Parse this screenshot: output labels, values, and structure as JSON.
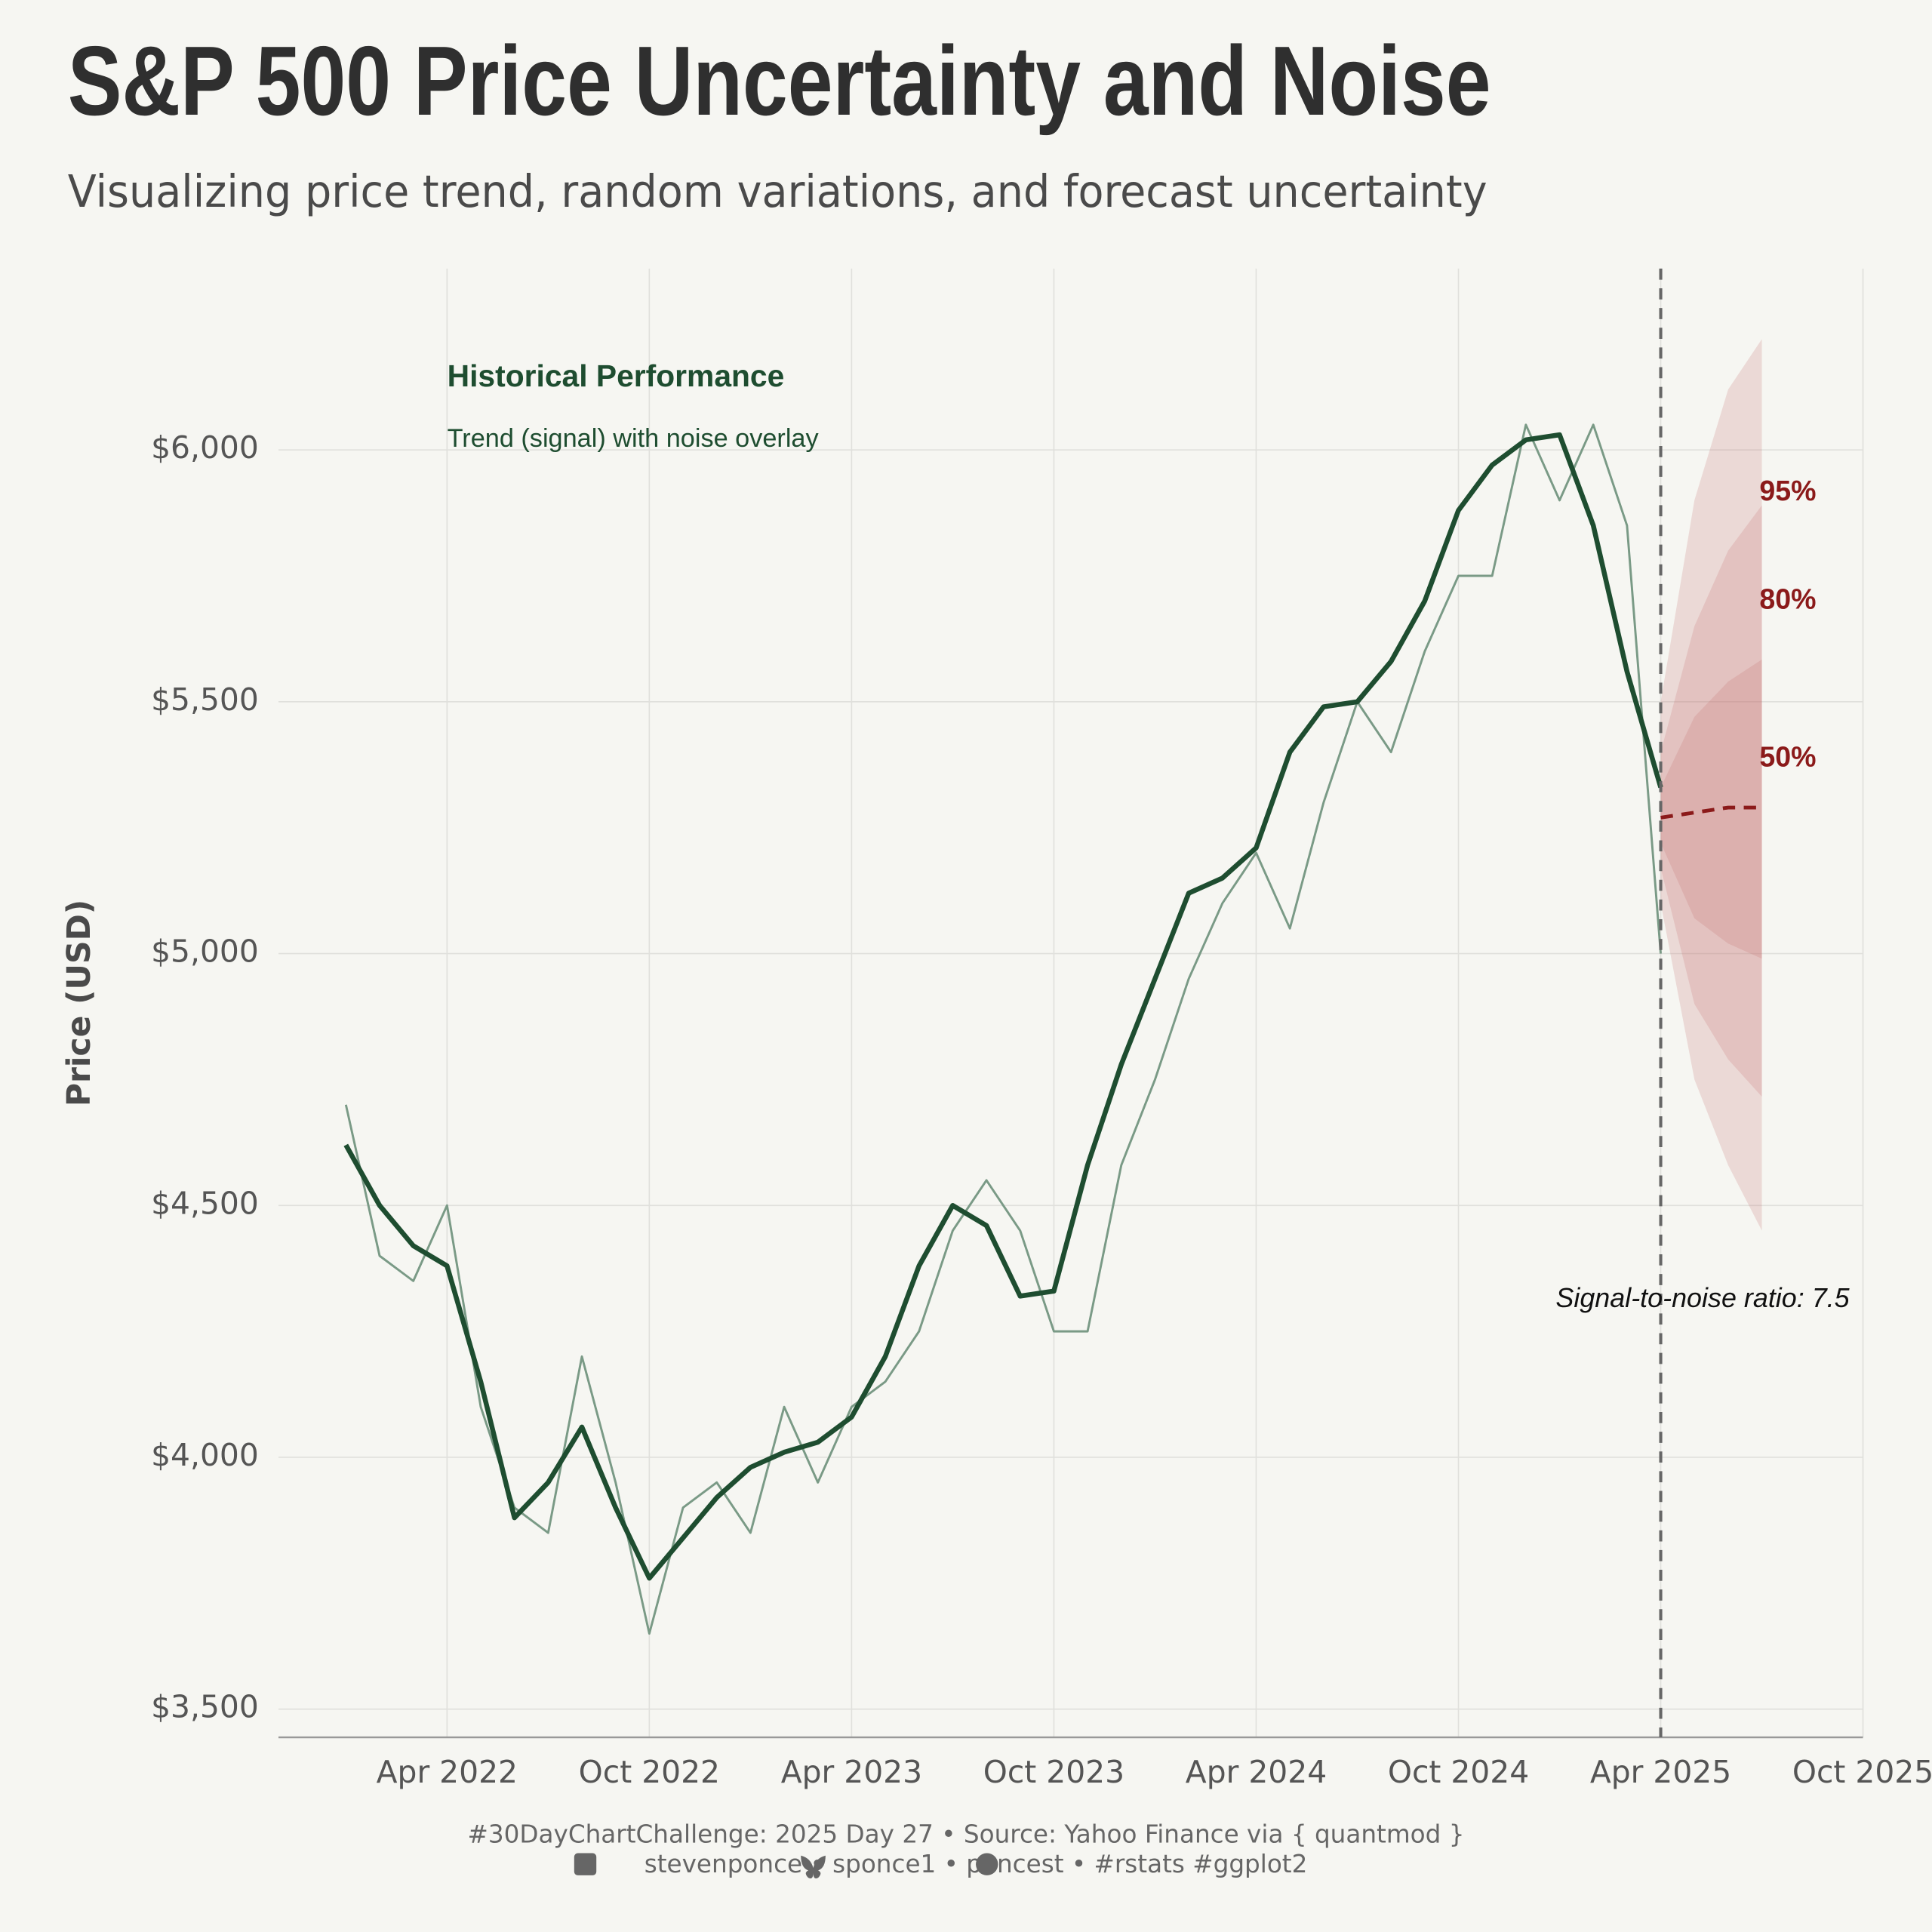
{
  "title": "S&P 500 Price Uncertainty and Noise",
  "subtitle": "Visualizing price trend, random variations, and forecast uncertainty",
  "caption": [
    "#30DayChartChallenge: 2025 Day 27 • Source: Yahoo Finance via { quantmod }",
    "stevenponce • sponce1 • poncest • #rstats #ggplot2"
  ],
  "chart_data": {
    "type": "line",
    "ylabel": "Price (USD)",
    "x": [
      "2022-01",
      "2022-02",
      "2022-03",
      "2022-04",
      "2022-05",
      "2022-06",
      "2022-07",
      "2022-08",
      "2022-09",
      "2022-10",
      "2022-11",
      "2022-12",
      "2023-01",
      "2023-02",
      "2023-03",
      "2023-04",
      "2023-05",
      "2023-06",
      "2023-07",
      "2023-08",
      "2023-09",
      "2023-10",
      "2023-11",
      "2023-12",
      "2024-01",
      "2024-02",
      "2024-03",
      "2024-04",
      "2024-05",
      "2024-06",
      "2024-07",
      "2024-08",
      "2024-09",
      "2024-10",
      "2024-11",
      "2024-12",
      "2025-01",
      "2025-02",
      "2025-03",
      "2025-04"
    ],
    "series": [
      {
        "color": "#7a9a86",
        "values": [
          4700,
          4400,
          4350,
          4500,
          4100,
          3900,
          3850,
          4200,
          3950,
          3650,
          3900,
          3950,
          3850,
          4100,
          3950,
          4100,
          4150,
          4250,
          4450,
          4550,
          4450,
          4250,
          4250,
          4580,
          4750,
          4950,
          5100,
          5200,
          5050,
          5300,
          5500,
          5400,
          5600,
          5750,
          5750,
          6050,
          5900,
          6050,
          5850,
          5000
        ]
      },
      {
        "color": "#1e4d30",
        "values": [
          4620,
          4500,
          4420,
          4380,
          4150,
          3880,
          3950,
          4060,
          3900,
          3760,
          3840,
          3920,
          3980,
          4010,
          4030,
          4080,
          4200,
          4380,
          4500,
          4460,
          4320,
          4330,
          4580,
          4780,
          4950,
          5120,
          5150,
          5210,
          5400,
          5490,
          5500,
          5580,
          5700,
          5880,
          5970,
          6020,
          6030,
          5850,
          5560,
          5330
        ]
      }
    ],
    "forecast": {
      "x": [
        "2025-04",
        "2025-05",
        "2025-06",
        "2025-07"
      ],
      "median": [
        5270,
        5280,
        5290,
        5290
      ],
      "color": "#8b1a1a",
      "bands": [
        {
          "label": "95%",
          "lower": [
            5100,
            4750,
            4580,
            4450
          ],
          "upper": [
            5500,
            5900,
            6120,
            6220
          ]
        },
        {
          "label": "80%",
          "lower": [
            5170,
            4900,
            4790,
            4716
          ],
          "upper": [
            5400,
            5650,
            5800,
            5890
          ]
        },
        {
          "label": "50%",
          "lower": [
            5220,
            5070,
            5020,
            4990
          ],
          "upper": [
            5330,
            5470,
            5540,
            5584
          ]
        }
      ]
    },
    "annotations": [
      "Historical Performance",
      "Trend (signal) with noise overlay",
      "Signal-to-noise ratio: 7.5"
    ],
    "xlim": [
      "2021-11",
      "2025-10"
    ],
    "xticks": [
      {
        "value": "2022-04",
        "label": "Apr 2022"
      },
      {
        "value": "2022-10",
        "label": "Oct 2022"
      },
      {
        "value": "2023-04",
        "label": "Apr 2023"
      },
      {
        "value": "2023-10",
        "label": "Oct 2023"
      },
      {
        "value": "2024-04",
        "label": "Apr 2024"
      },
      {
        "value": "2024-10",
        "label": "Oct 2024"
      },
      {
        "value": "2025-04",
        "label": "Apr 2025"
      },
      {
        "value": "2025-10",
        "label": "Oct 2025"
      }
    ],
    "ylim": [
      3444,
      6360
    ],
    "yticks": [
      {
        "value": 3500,
        "label": "$3,500"
      },
      {
        "value": 4000,
        "label": "$4,000"
      },
      {
        "value": 4500,
        "label": "$4,500"
      },
      {
        "value": 5000,
        "label": "$5,000"
      },
      {
        "value": 5500,
        "label": "$5,500"
      },
      {
        "value": 6000,
        "label": "$6,000"
      }
    ],
    "grid": true
  }
}
